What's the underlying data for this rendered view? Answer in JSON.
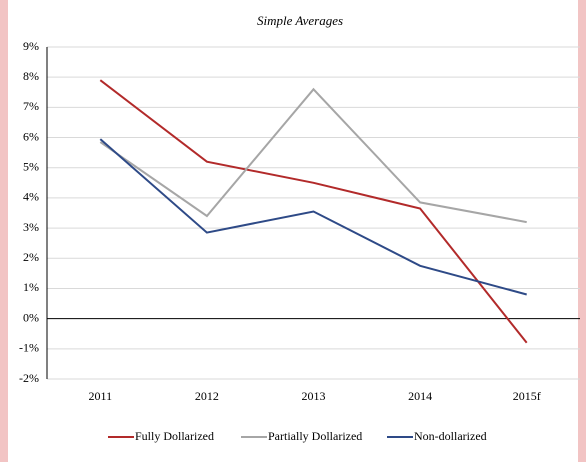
{
  "chart_data": {
    "type": "line",
    "title": "Simple Averages",
    "categories": [
      "2011",
      "2012",
      "2013",
      "2014",
      "2015f"
    ],
    "series": [
      {
        "name": "Fully Dollarized",
        "color": "#b22a2a",
        "values": [
          7.9,
          5.2,
          4.5,
          3.65,
          -0.8
        ]
      },
      {
        "name": "Partially Dollarized",
        "color": "#a6a6a6",
        "values": [
          5.85,
          3.4,
          7.6,
          3.85,
          3.2
        ]
      },
      {
        "name": "Non-dollarized",
        "color": "#2e4a87",
        "values": [
          5.95,
          2.85,
          3.55,
          1.75,
          0.8
        ]
      }
    ],
    "ylim": [
      -2,
      9
    ],
    "yticks": [
      {
        "value": -2,
        "label": "-2%"
      },
      {
        "value": -1,
        "label": "-1%"
      },
      {
        "value": 0,
        "label": "0%"
      },
      {
        "value": 1,
        "label": "1%"
      },
      {
        "value": 2,
        "label": "2%"
      },
      {
        "value": 3,
        "label": "3%"
      },
      {
        "value": 4,
        "label": "4%"
      },
      {
        "value": 5,
        "label": "5%"
      },
      {
        "value": 6,
        "label": "6%"
      },
      {
        "value": 7,
        "label": "7%"
      },
      {
        "value": 8,
        "label": "8%"
      },
      {
        "value": 9,
        "label": "9%"
      }
    ],
    "grid": true,
    "legend": "bottom"
  }
}
